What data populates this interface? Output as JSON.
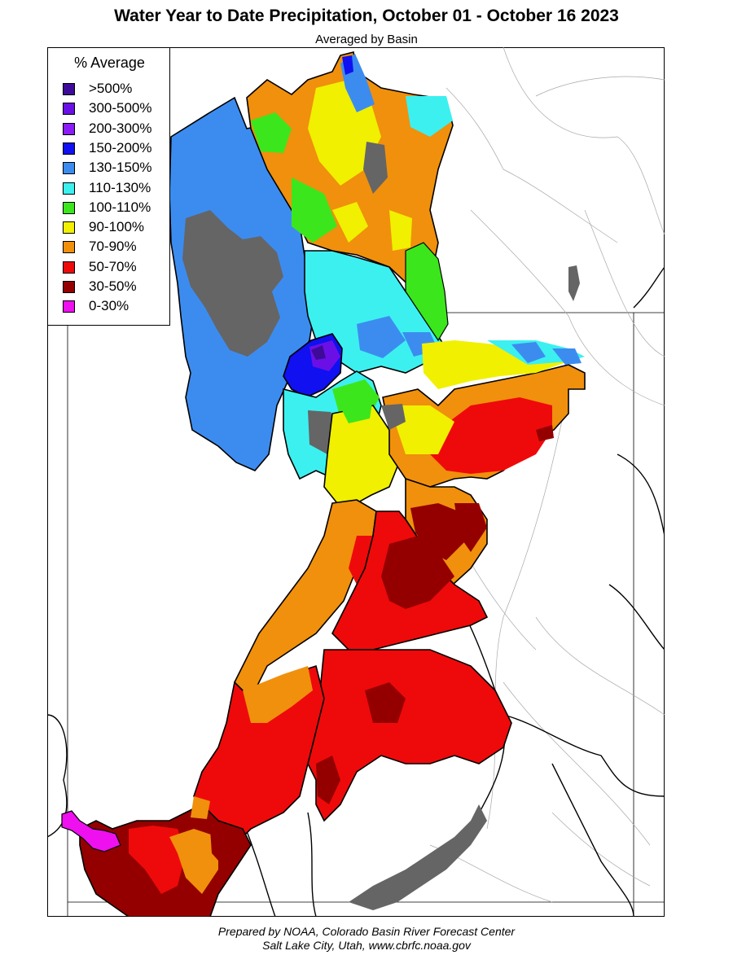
{
  "title": "Water Year to Date Precipitation, October 01  - October 16 2023",
  "subtitle": "Averaged by Basin",
  "legend": {
    "title": "% Average",
    "items": [
      {
        "label": ">500%",
        "color": "#3d0a99"
      },
      {
        "label": "300-500%",
        "color": "#6a10e6"
      },
      {
        "label": "200-300%",
        "color": "#8a1cf5"
      },
      {
        "label": "150-200%",
        "color": "#1010f0"
      },
      {
        "label": "130-150%",
        "color": "#3c8cf0"
      },
      {
        "label": "110-130%",
        "color": "#3cf0f0"
      },
      {
        "label": "100-110%",
        "color": "#3ce61c"
      },
      {
        "label": "90-100%",
        "color": "#f0f000"
      },
      {
        "label": "70-90%",
        "color": "#f0900c"
      },
      {
        "label": "50-70%",
        "color": "#ee0a0a"
      },
      {
        "label": "30-50%",
        "color": "#940000"
      },
      {
        "label": "0-30%",
        "color": "#ee10ee"
      }
    ]
  },
  "colors": {
    "lake": "#656565",
    "state_line": "#000000",
    "basin_line": "#000000",
    "river": "#9a9a9a"
  },
  "footer": {
    "line1": "Prepared by NOAA, Colorado Basin River Forecast Center",
    "line2": "Salt Lake City, Utah, www.cbrfc.noaa.gov"
  }
}
